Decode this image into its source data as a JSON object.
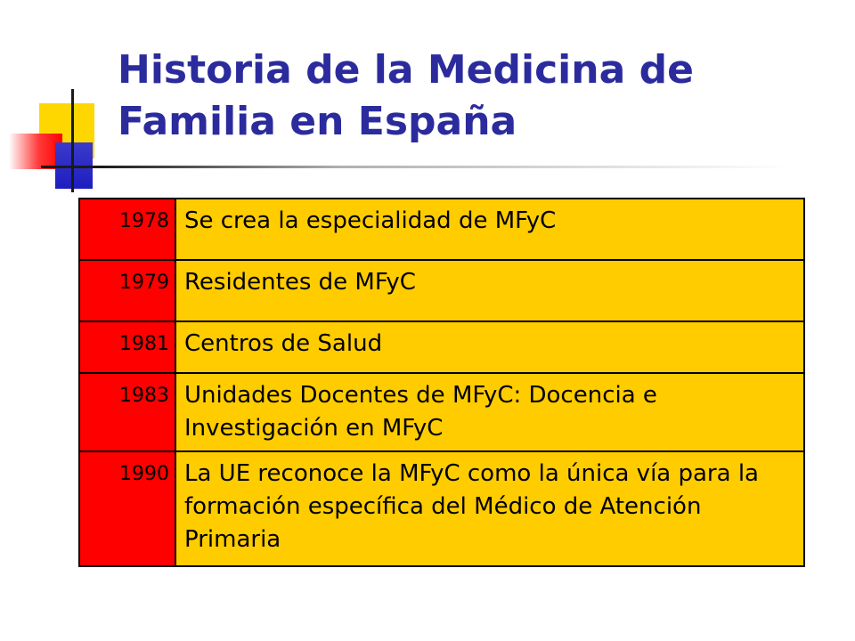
{
  "slide": {
    "title": "Historia de la Medicina de Familia en España",
    "timeline": [
      {
        "year": "1978",
        "event": "Se crea la especialidad de MFyC"
      },
      {
        "year": "1979",
        "event": "Residentes de MFyC"
      },
      {
        "year": "1981",
        "event": "Centros de Salud"
      },
      {
        "year": "1983",
        "event": "Unidades Docentes de MFyC: Docencia e Investigación en MFyC"
      },
      {
        "year": "1990",
        "event": "La UE reconoce la MFyC como la única vía para la formación específica del Médico de Atención Primaria"
      }
    ]
  },
  "colors": {
    "title": "#2b2b9e",
    "year_cell": "#ff0000",
    "event_cell": "#ffcc00",
    "border": "#000000"
  }
}
